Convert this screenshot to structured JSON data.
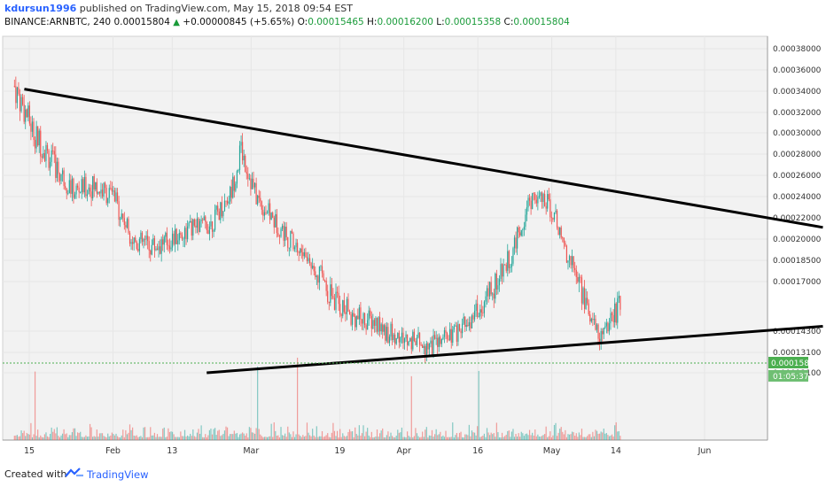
{
  "header": {
    "user": "kdursun1996",
    "published": "published on TradingView.com, May 15, 2018 09:54 EST",
    "symbol": "BINANCE:ARNBTC, 240",
    "last": "0.00015804",
    "change": "+0.00000845 (+5.65%)",
    "o_label": "O:",
    "o_value": "0.00015465",
    "h_label": "H:",
    "h_value": "0.00016200",
    "l_label": "L:",
    "l_value": "0.00015358",
    "c_label": "C:",
    "c_value": "0.00015804"
  },
  "footer": {
    "created_with": "Created with",
    "brand": "TradingView"
  },
  "colors": {
    "up": "#26a69a",
    "down": "#ef5350",
    "trendline": "#000000",
    "grid": "#e6e6e6",
    "price_tag": "#4caf50",
    "bg": "#f2f2f2"
  },
  "chart_data": {
    "type": "candlestick",
    "y_ticks": [
      "0.00038000",
      "0.00036000",
      "0.00034000",
      "0.00032000",
      "0.00030000",
      "0.00028000",
      "0.00026000",
      "0.00024000",
      "0.00022000",
      "0.00020000",
      "0.00018500",
      "0.00017000",
      "0.00015804",
      "0.00014300",
      "0.00013100",
      "0.00012100"
    ],
    "x_ticks": [
      "15",
      "Feb",
      "13",
      "Mar",
      "19",
      "Apr",
      "16",
      "May",
      "14",
      "Jun"
    ],
    "price_tag": "0.00015804",
    "countdown": "01:05:37",
    "trendlines": [
      {
        "name": "upper",
        "from": [
          "Jan 14",
          0.000342
        ],
        "to": [
          "Jun 25",
          0.000211
        ]
      },
      {
        "name": "lower",
        "from": [
          "Feb 20",
          0.000121
        ],
        "to": [
          "Jun 25",
          0.000146
        ]
      }
    ],
    "price_path": [
      {
        "date": "Jan 12",
        "price": 0.000345
      },
      {
        "date": "Jan 16",
        "price": 0.0003
      },
      {
        "date": "Jan 20",
        "price": 0.00027
      },
      {
        "date": "Jan 24",
        "price": 0.000245
      },
      {
        "date": "Jan 28",
        "price": 0.00025
      },
      {
        "date": "Feb 1",
        "price": 0.00024
      },
      {
        "date": "Feb 5",
        "price": 0.0002
      },
      {
        "date": "Feb 9",
        "price": 0.000195
      },
      {
        "date": "Feb 13",
        "price": 0.0002
      },
      {
        "date": "Feb 17",
        "price": 0.00021
      },
      {
        "date": "Feb 21",
        "price": 0.000215
      },
      {
        "date": "Feb 25",
        "price": 0.000245
      },
      {
        "date": "Feb 27",
        "price": 0.000285
      },
      {
        "date": "Mar 2",
        "price": 0.00024
      },
      {
        "date": "Mar 6",
        "price": 0.000215
      },
      {
        "date": "Mar 10",
        "price": 0.000195
      },
      {
        "date": "Mar 14",
        "price": 0.00018
      },
      {
        "date": "Mar 18",
        "price": 0.00016
      },
      {
        "date": "Mar 22",
        "price": 0.000152
      },
      {
        "date": "Mar 26",
        "price": 0.000148
      },
      {
        "date": "Mar 30",
        "price": 0.00014
      },
      {
        "date": "Apr 3",
        "price": 0.000137
      },
      {
        "date": "Apr 7",
        "price": 0.000135
      },
      {
        "date": "Apr 11",
        "price": 0.00014
      },
      {
        "date": "Apr 15",
        "price": 0.00015
      },
      {
        "date": "Apr 19",
        "price": 0.000165
      },
      {
        "date": "Apr 23",
        "price": 0.00019
      },
      {
        "date": "Apr 27",
        "price": 0.00024
      },
      {
        "date": "May 1",
        "price": 0.00023
      },
      {
        "date": "May 3",
        "price": 0.0002
      },
      {
        "date": "May 6",
        "price": 0.000175
      },
      {
        "date": "May 9",
        "price": 0.00015
      },
      {
        "date": "May 11",
        "price": 0.00014
      },
      {
        "date": "May 15",
        "price": 0.000158
      }
    ]
  }
}
